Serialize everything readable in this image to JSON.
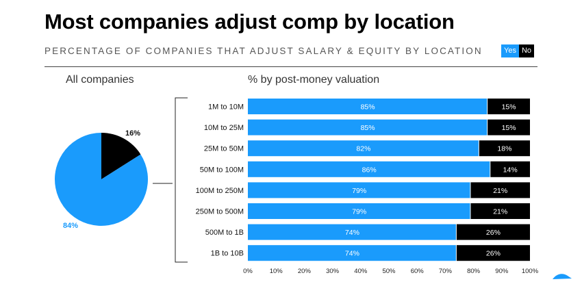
{
  "title": "Most companies adjust comp by location",
  "subtitle": "PERCENTAGE OF COMPANIES THAT ADJUST SALARY & EQUITY BY LOCATION",
  "legend": {
    "yes": "Yes",
    "no": "No"
  },
  "colors": {
    "yes": "#1a9bfc",
    "no": "#000000"
  },
  "chart_data": [
    {
      "type": "pie",
      "title": "All companies",
      "labels": [
        "Yes",
        "No"
      ],
      "values": [
        84,
        16
      ],
      "value_labels": [
        "84%",
        "16%"
      ]
    },
    {
      "type": "bar",
      "orientation": "horizontal",
      "stacked": true,
      "title": "% by post-money valuation",
      "categories": [
        "1M to 10M",
        "10M to 25M",
        "25M to 50M",
        "50M to 100M",
        "100M to 250M",
        "250M to 500M",
        "500M to 1B",
        "1B to 10B"
      ],
      "series": [
        {
          "name": "Yes",
          "values": [
            85,
            85,
            82,
            86,
            79,
            79,
            74,
            74
          ],
          "labels": [
            "85%",
            "85%",
            "82%",
            "86%",
            "79%",
            "79%",
            "74%",
            "74%"
          ]
        },
        {
          "name": "No",
          "values": [
            15,
            15,
            18,
            14,
            21,
            21,
            26,
            26
          ],
          "labels": [
            "15%",
            "15%",
            "18%",
            "14%",
            "21%",
            "21%",
            "26%",
            "26%"
          ]
        }
      ],
      "xlim": [
        0,
        100
      ],
      "xticks": [
        "0%",
        "10%",
        "20%",
        "30%",
        "40%",
        "50%",
        "60%",
        "70%",
        "80%",
        "90%",
        "100%"
      ],
      "grid": false
    }
  ]
}
